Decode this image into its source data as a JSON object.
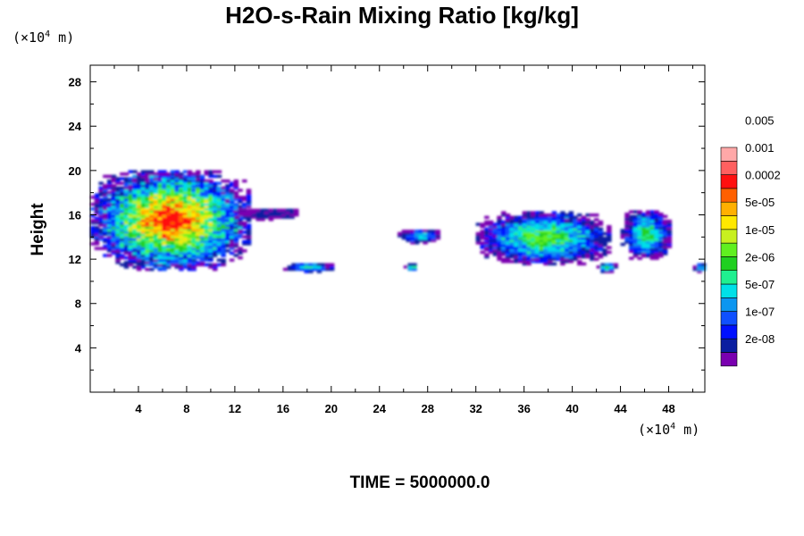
{
  "chart_data": {
    "type": "heatmap",
    "title": "H2O-s-Rain Mixing Ratio [kg/kg]",
    "ylabel": "Height",
    "x_unit": "(×10⁴ m)",
    "y_unit": "(×10⁴ m)",
    "time_label": "TIME = 5000000.0",
    "xlim": [
      0,
      51
    ],
    "ylim": [
      0,
      29.5
    ],
    "x_ticks": [
      4,
      8,
      12,
      16,
      20,
      24,
      28,
      32,
      36,
      40,
      44,
      48
    ],
    "y_ticks": [
      4,
      8,
      12,
      16,
      20,
      24,
      28
    ],
    "colorbar": {
      "colors": [
        "#7a00b0",
        "#0a1ea0",
        "#0010ff",
        "#1050ff",
        "#0c96f0",
        "#00e0e8",
        "#20f090",
        "#20d020",
        "#60f020",
        "#c8f020",
        "#ffe800",
        "#ffb000",
        "#ff6000",
        "#ff1010",
        "#ff6060",
        "#ffa8a8"
      ],
      "labels": [
        "2e-08",
        "1e-07",
        "5e-07",
        "2e-06",
        "1e-05",
        "5e-05",
        "0.0002",
        "0.001",
        "0.005"
      ]
    },
    "regions": [
      {
        "x": [
          0,
          13
        ],
        "y": [
          11,
          20
        ],
        "max_level": 13
      },
      {
        "x": [
          12,
          17
        ],
        "y": [
          15.5,
          16.5
        ],
        "max_level": 1
      },
      {
        "x": [
          16,
          20
        ],
        "y": [
          10.8,
          11.6
        ],
        "max_level": 6
      },
      {
        "x": [
          25.5,
          29
        ],
        "y": [
          13.4,
          14.6
        ],
        "max_level": 5
      },
      {
        "x": [
          26,
          27
        ],
        "y": [
          10.8,
          11.5
        ],
        "max_level": 6
      },
      {
        "x": [
          32,
          43
        ],
        "y": [
          11.5,
          16.2
        ],
        "max_level": 8
      },
      {
        "x": [
          42,
          43.5
        ],
        "y": [
          10.8,
          11.6
        ],
        "max_level": 8
      },
      {
        "x": [
          44,
          48
        ],
        "y": [
          12,
          16.4
        ],
        "max_level": 7
      },
      {
        "x": [
          50,
          51
        ],
        "y": [
          10.8,
          11.6
        ],
        "max_level": 7
      }
    ]
  }
}
